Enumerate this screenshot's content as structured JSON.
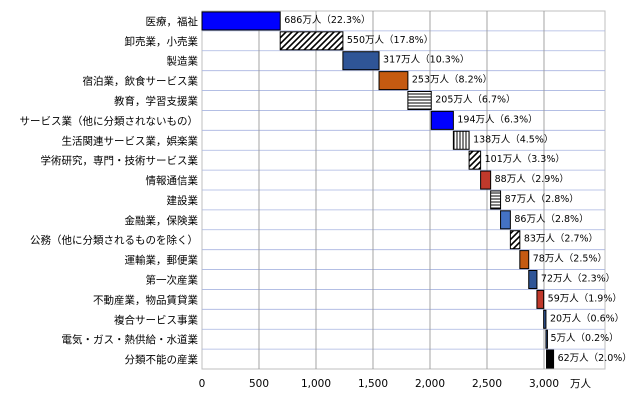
{
  "chart_data": {
    "type": "bar",
    "orientation": "horizontal-waterfall",
    "title": "",
    "xlabel": "",
    "ylabel": "",
    "unit": "万人",
    "xlim": [
      0,
      3000
    ],
    "xticks": [
      0,
      500,
      1000,
      1500,
      2000,
      2500,
      3000
    ],
    "xtick_labels": [
      "0",
      "500",
      "1,000",
      "1,500",
      "2,000",
      "2,500",
      "3,000"
    ],
    "grid": true,
    "legend": "none",
    "categories": [
      "医療，福祉",
      "卸売業，小売業",
      "製造業",
      "宿泊業，飲食サービス業",
      "教育，学習支援業",
      "サービス業（他に分類されないもの）",
      "生活関連サービス業，娯楽業",
      "学術研究，専門・技術サービス業",
      "情報通信業",
      "建設業",
      "金融業，保険業",
      "公務（他に分類されるものを除く）",
      "運輸業，郵便業",
      "第一次産業",
      "不動産業，物品賃貸業",
      "複合サービス事業",
      "電気・ガス・熱供給・水道業",
      "分類不能の産業"
    ],
    "values": [
      686,
      550,
      317,
      253,
      205,
      194,
      138,
      101,
      88,
      87,
      86,
      83,
      78,
      72,
      59,
      20,
      5,
      62
    ],
    "value_labels": [
      "686万人（22.3%）",
      "550万人（17.8%）",
      "317万人（10.3%）",
      "253万人（8.2%）",
      "205万人（6.7%）",
      "194万人（6.3%）",
      "138万人（4.5%）",
      "101万人（3.3%）",
      "88万人（2.9%）",
      "87万人（2.8%）",
      "86万人（2.8%）",
      "83万人（2.7%）",
      "78万人（2.5%）",
      "72万人（2.3%）",
      "59万人（1.9%）",
      "20万人（0.6%）",
      "5万人（0.2%）",
      "62万人（2.0%）"
    ],
    "colors": [
      "#0000ff",
      "hatch-diagonal",
      "#2f5597",
      "#c55a11",
      "hatch-horizontal",
      "#0000ff",
      "hatch-vertical",
      "hatch-diagonal",
      "#c0392b",
      "hatch-horizontal",
      "#4472c4",
      "hatch-diagonal",
      "#c55a11",
      "#2f5597",
      "#c0392b",
      "#2f5597",
      "#2f5597",
      "#000000"
    ]
  }
}
